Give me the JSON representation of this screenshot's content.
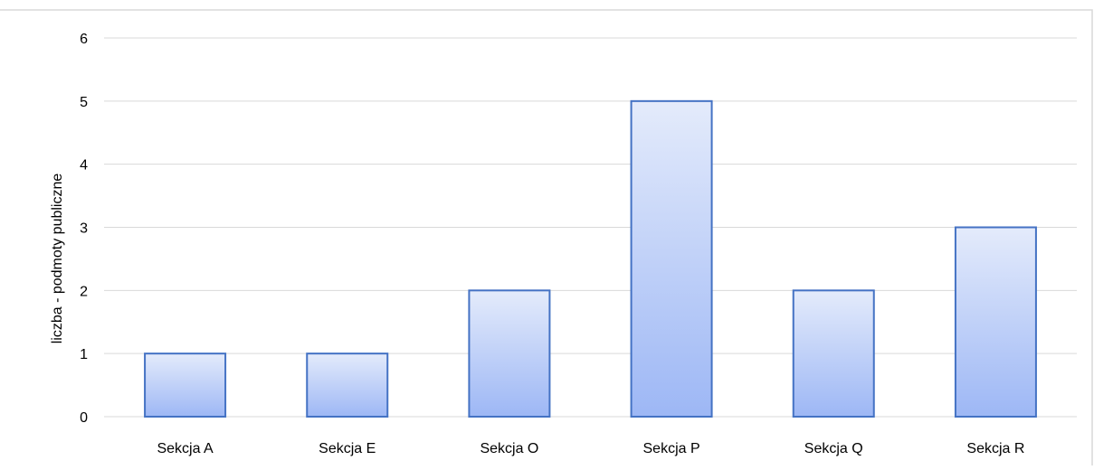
{
  "chart_data": {
    "type": "bar",
    "title": "",
    "xlabel": "",
    "ylabel": "liczba - podmoty publiczne",
    "categories": [
      "Sekcja A",
      "Sekcja E",
      "Sekcja O",
      "Sekcja P",
      "Sekcja Q",
      "Sekcja R"
    ],
    "values": [
      1,
      1,
      2,
      5,
      2,
      3
    ],
    "ylim": [
      0,
      6
    ],
    "yticks": [
      "0",
      "1",
      "2",
      "3",
      "4",
      "5",
      "6"
    ],
    "grid": true,
    "legend": "none",
    "colors": {
      "bar_fill_top": "#e4ebfb",
      "bar_fill_bottom": "#9db7f5",
      "bar_stroke": "#4472c4",
      "grid": "#d9d9d9",
      "frame": "#d9d9d9"
    }
  }
}
